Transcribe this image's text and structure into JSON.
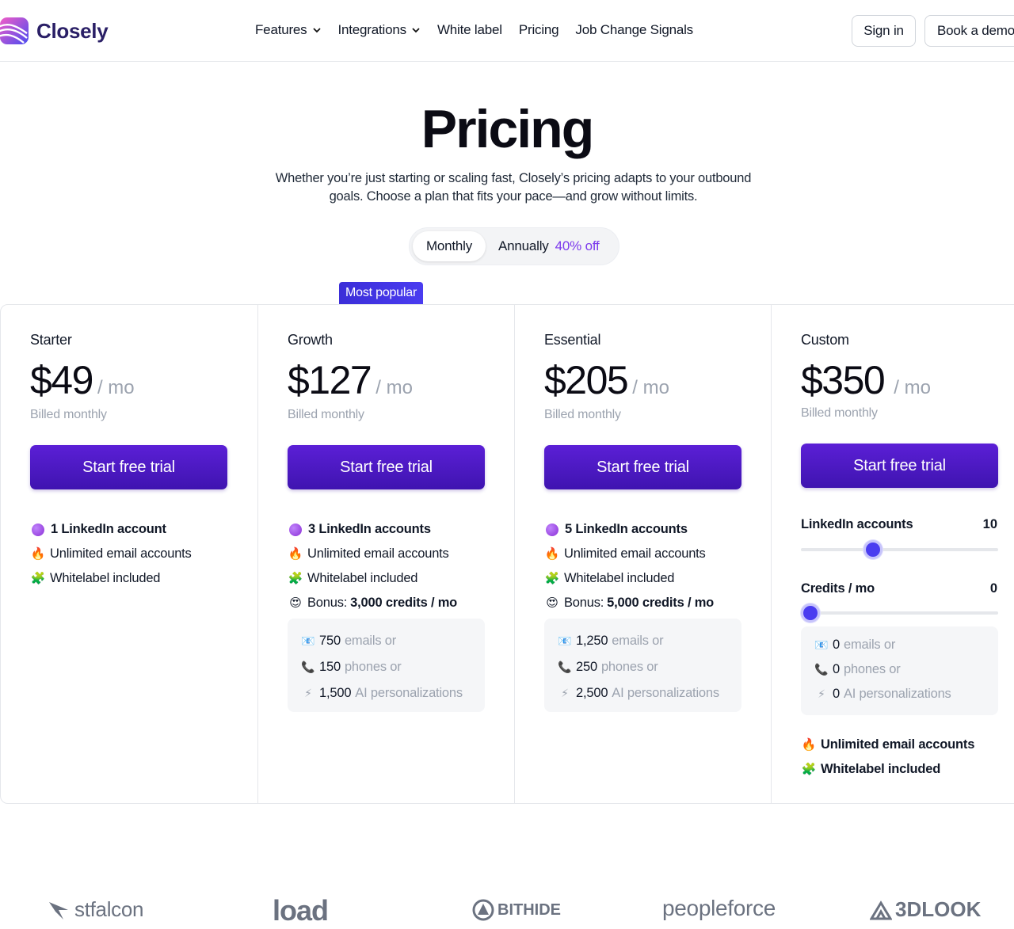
{
  "header": {
    "brand": "Closely",
    "nav": [
      {
        "label": "Features",
        "dropdown": true
      },
      {
        "label": "Integrations",
        "dropdown": true
      },
      {
        "label": "White label",
        "dropdown": false
      },
      {
        "label": "Pricing",
        "dropdown": false
      },
      {
        "label": "Job Change Signals",
        "dropdown": false
      }
    ],
    "sign_in": "Sign in",
    "book_demo": "Book a demo"
  },
  "hero": {
    "title": "Pricing",
    "subtitle": "Whether you’re just starting or scaling fast, Closely’s pricing adapts to your outbound goals. Choose a plan that fits your pace—and grow without limits."
  },
  "billing_toggle": {
    "monthly": "Monthly",
    "annually": "Annually",
    "discount": "40% off",
    "selected": "Monthly"
  },
  "popular_badge": "Most popular",
  "plans": [
    {
      "name": "Starter",
      "price": "$49",
      "unit": "/ mo",
      "billed": "Billed monthly",
      "cta": "Start free trial",
      "features": [
        {
          "icon": "purple-circle",
          "strong": "1 LinkedIn account"
        },
        {
          "icon": "fire",
          "text": "Unlimited email accounts"
        },
        {
          "icon": "puzzle",
          "text": "Whitelabel included"
        }
      ]
    },
    {
      "name": "Growth",
      "price": "$127",
      "unit": "/ mo",
      "billed": "Billed monthly",
      "cta": "Start free trial",
      "features": [
        {
          "icon": "purple-circle",
          "strong": "3 LinkedIn accounts"
        },
        {
          "icon": "fire",
          "text": "Unlimited email accounts"
        },
        {
          "icon": "puzzle",
          "text": "Whitelabel included"
        },
        {
          "icon": "heart-eyes",
          "text": "Bonus:",
          "strong": "3,000 credits / mo"
        }
      ],
      "credits": [
        {
          "icon": "email",
          "value": "750",
          "text": "emails or"
        },
        {
          "icon": "phone",
          "value": "150",
          "text": "phones or"
        },
        {
          "icon": "lightning",
          "value": "1,500",
          "text": "AI personalizations"
        }
      ]
    },
    {
      "name": "Essential",
      "price": "$205",
      "unit": "/ mo",
      "billed": "Billed monthly",
      "cta": "Start free trial",
      "features": [
        {
          "icon": "purple-circle",
          "strong": "5 LinkedIn accounts"
        },
        {
          "icon": "fire",
          "text": "Unlimited email accounts"
        },
        {
          "icon": "puzzle",
          "text": "Whitelabel included"
        },
        {
          "icon": "heart-eyes",
          "text": "Bonus:",
          "strong": "5,000 credits / mo"
        }
      ],
      "credits": [
        {
          "icon": "email",
          "value": "1,250",
          "text": "emails or"
        },
        {
          "icon": "phone",
          "value": "250",
          "text": "phones or"
        },
        {
          "icon": "lightning",
          "value": "2,500",
          "text": "AI personalizations"
        }
      ]
    },
    {
      "name": "Custom",
      "price": "$350",
      "unit": "/ mo",
      "billed": "Billed monthly",
      "cta": "Start free trial",
      "linkedin_label": "LinkedIn accounts",
      "linkedin_value": "10",
      "linkedin_fraction": 0.35,
      "credits_label": "Credits / mo",
      "credits_value": "0",
      "credits_fraction": 0.0,
      "credits": [
        {
          "icon": "email",
          "value": "0",
          "text": "emails or"
        },
        {
          "icon": "phone",
          "value": "0",
          "text": "phones or"
        },
        {
          "icon": "lightning",
          "value": "0",
          "text": "AI personalizations"
        }
      ],
      "extras": [
        {
          "icon": "fire",
          "text": "Unlimited email accounts"
        },
        {
          "icon": "puzzle",
          "text": "Whitelabel included"
        }
      ]
    }
  ],
  "logos": [
    {
      "name": "stfalcon",
      "icon": "falcon-icon"
    },
    {
      "name": "load",
      "icon": ""
    },
    {
      "name": "BITHIDE",
      "icon": "bithide-icon"
    },
    {
      "name": "peopleforce",
      "icon": ""
    },
    {
      "name": "3DLOOK",
      "icon": "3dlook-icon"
    }
  ],
  "colors": {
    "brand_purple": "#4a1fc8",
    "accent": "#7c3aed",
    "badge": "#3b2ed8"
  }
}
